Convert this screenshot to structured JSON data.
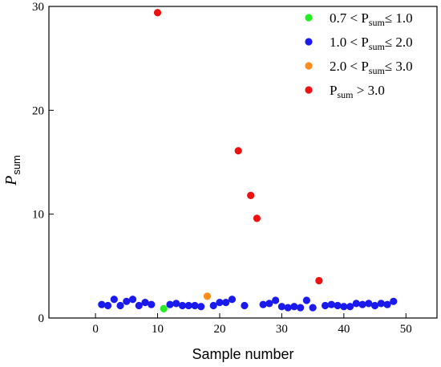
{
  "chart_data": {
    "type": "scatter",
    "xlabel": "Sample number",
    "ylabel": "P",
    "ylabel_sub": "sum",
    "xlim": [
      -7.5,
      55
    ],
    "ylim": [
      0,
      30
    ],
    "x_ticks": [
      0,
      10,
      20,
      30,
      40,
      50
    ],
    "y_ticks": [
      0,
      10,
      20,
      30
    ],
    "legend_position": "top-right",
    "series": [
      {
        "name": "0.7 < Psum≤ 1.0",
        "color": "#22ee22",
        "legend": {
          "pre": "0.7 < P",
          "sub": "sum",
          "post": "≤ 1.0"
        },
        "x": [
          11
        ],
        "y": [
          0.9
        ]
      },
      {
        "name": "1.0 < Psum≤ 2.0",
        "color": "#1a1aee",
        "legend": {
          "pre": "1.0 < P",
          "sub": "sum",
          "post": "≤ 2.0"
        },
        "x": [
          1,
          2,
          3,
          4,
          5,
          6,
          7,
          8,
          9,
          12,
          13,
          14,
          15,
          16,
          17,
          19,
          20,
          21,
          22,
          24,
          27,
          28,
          29,
          30,
          31,
          32,
          33,
          34,
          35,
          37,
          38,
          39,
          40,
          41,
          42,
          43,
          44,
          45,
          46,
          47,
          48
        ],
        "y": [
          1.3,
          1.2,
          1.8,
          1.2,
          1.6,
          1.8,
          1.2,
          1.5,
          1.3,
          1.3,
          1.4,
          1.2,
          1.2,
          1.2,
          1.1,
          1.2,
          1.5,
          1.5,
          1.8,
          1.2,
          1.3,
          1.4,
          1.7,
          1.1,
          1.0,
          1.1,
          1.0,
          1.7,
          1.0,
          1.2,
          1.3,
          1.2,
          1.1,
          1.1,
          1.4,
          1.3,
          1.4,
          1.2,
          1.4,
          1.3,
          1.6
        ]
      },
      {
        "name": "2.0 < Psum≤ 3.0",
        "color": "#ff8c1a",
        "legend": {
          "pre": "2.0 < P",
          "sub": "sum",
          "post": "≤ 3.0"
        },
        "x": [
          18
        ],
        "y": [
          2.1
        ]
      },
      {
        "name": "Psum > 3.0",
        "color": "#ee1111",
        "legend": {
          "pre": "P",
          "sub": "sum",
          "post": " > 3.0"
        },
        "x": [
          10,
          23,
          25,
          26,
          36
        ],
        "y": [
          29.4,
          16.1,
          11.8,
          9.6,
          3.6
        ]
      }
    ]
  }
}
